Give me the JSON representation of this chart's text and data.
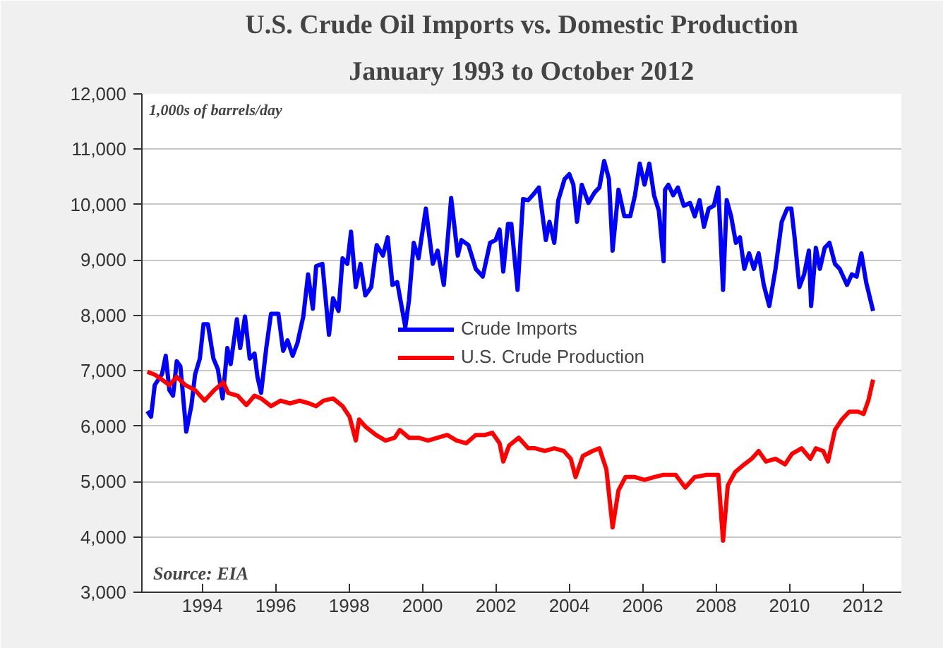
{
  "chart_data": {
    "type": "line",
    "title": "U.S. Crude Oil Imports vs. Domestic Production",
    "subtitle": "January 1993 to October 2012",
    "annotations": [
      "1,000s of barrels/day",
      "Source: EIA"
    ],
    "xlim": [
      1992.85,
      2013.55
    ],
    "xticks": [
      {
        "value": 1994.5,
        "label": "1994"
      },
      {
        "value": 1996.5,
        "label": "1996"
      },
      {
        "value": 1998.5,
        "label": "1998"
      },
      {
        "value": 2000.5,
        "label": "2000"
      },
      {
        "value": 2002.5,
        "label": "2002"
      },
      {
        "value": 2004.5,
        "label": "2004"
      },
      {
        "value": 2006.5,
        "label": "2006"
      },
      {
        "value": 2008.5,
        "label": "2008"
      },
      {
        "value": 2010.5,
        "label": "2010"
      },
      {
        "value": 2012.5,
        "label": "2012"
      }
    ],
    "ylim": [
      3000,
      12000
    ],
    "yticks": [
      {
        "value": 3000,
        "label": "3,000"
      },
      {
        "value": 4000,
        "label": "4,000"
      },
      {
        "value": 5000,
        "label": "5,000"
      },
      {
        "value": 6000,
        "label": "6,000"
      },
      {
        "value": 7000,
        "label": "7,000"
      },
      {
        "value": 8000,
        "label": "8,000"
      },
      {
        "value": 9000,
        "label": "9,000"
      },
      {
        "value": 10000,
        "label": "10,000"
      },
      {
        "value": 11000,
        "label": "11,000"
      },
      {
        "value": 12000,
        "label": "12,000"
      }
    ],
    "grid": "y",
    "legend": "center",
    "line_style": "solid",
    "series": [
      {
        "name": "Crude Imports",
        "color": "#0000ff",
        "x": [
          1993.0,
          1993.1,
          1993.2,
          1993.4,
          1993.5,
          1993.6,
          1993.7,
          1993.8,
          1993.9,
          1994.06,
          1994.2,
          1994.3,
          1994.43,
          1994.53,
          1994.65,
          1994.8,
          1994.92,
          1995.05,
          1995.18,
          1995.27,
          1995.44,
          1995.53,
          1995.66,
          1995.79,
          1995.92,
          1996.0,
          1996.1,
          1996.24,
          1996.37,
          1996.57,
          1996.7,
          1996.82,
          1996.96,
          1997.09,
          1997.25,
          1997.38,
          1997.51,
          1997.6,
          1997.77,
          1997.95,
          1998.06,
          1998.21,
          1998.32,
          1998.45,
          1998.55,
          1998.68,
          1998.81,
          1998.94,
          1999.1,
          1999.25,
          1999.42,
          1999.55,
          1999.68,
          1999.81,
          2000.03,
          2000.13,
          2000.26,
          2000.39,
          2000.59,
          2000.78,
          2000.91,
          2001.08,
          2001.28,
          2001.46,
          2001.56,
          2001.75,
          2001.95,
          2002.14,
          2002.34,
          2002.49,
          2002.6,
          2002.7,
          2002.83,
          2002.92,
          2003.09,
          2003.24,
          2003.38,
          2003.5,
          2003.67,
          2003.86,
          2003.96,
          2004.09,
          2004.2,
          2004.37,
          2004.5,
          2004.61,
          2004.71,
          2004.84,
          2005.02,
          2005.19,
          2005.32,
          2005.45,
          2005.58,
          2005.68,
          2005.84,
          2006.0,
          2006.16,
          2006.29,
          2006.42,
          2006.55,
          2006.68,
          2006.81,
          2006.94,
          2007.07,
          2007.11,
          2007.2,
          2007.33,
          2007.46,
          2007.62,
          2007.79,
          2007.92,
          2008.05,
          2008.17,
          2008.3,
          2008.44,
          2008.56,
          2008.69,
          2008.79,
          2008.91,
          2009.04,
          2009.15,
          2009.27,
          2009.4,
          2009.53,
          2009.66,
          2009.8,
          2009.95,
          2010.12,
          2010.29,
          2010.44,
          2010.55,
          2010.64,
          2010.77,
          2010.9,
          2011.03,
          2011.09,
          2011.22,
          2011.33,
          2011.46,
          2011.59,
          2011.74,
          2011.87,
          2012.07,
          2012.2,
          2012.33,
          2012.46,
          2012.59,
          2012.78
        ],
        "values": [
          6270,
          6170,
          6740,
          6940,
          7270,
          6650,
          6550,
          7170,
          7080,
          5900,
          6370,
          6930,
          7220,
          7840,
          7840,
          7220,
          7030,
          6500,
          7410,
          7120,
          7930,
          7410,
          7980,
          7220,
          7310,
          6890,
          6600,
          7410,
          8030,
          8030,
          7360,
          7550,
          7270,
          7500,
          7980,
          8740,
          8120,
          8890,
          8930,
          7650,
          8310,
          8080,
          9030,
          8930,
          9510,
          8510,
          8930,
          8360,
          8510,
          9270,
          9080,
          9410,
          8550,
          8600,
          7790,
          8270,
          9310,
          9030,
          9930,
          8930,
          9170,
          8550,
          10120,
          9080,
          9360,
          9270,
          8840,
          8700,
          9310,
          9360,
          9550,
          8790,
          9650,
          9650,
          8460,
          10100,
          10080,
          10170,
          10310,
          9360,
          9690,
          9310,
          10080,
          10460,
          10550,
          10360,
          9690,
          10360,
          10030,
          10220,
          10310,
          10790,
          10460,
          9170,
          10270,
          9790,
          9790,
          10170,
          10740,
          10360,
          10740,
          10170,
          9890,
          8980,
          10270,
          10360,
          10170,
          10310,
          9980,
          10030,
          9790,
          10080,
          9600,
          9930,
          9980,
          10310,
          8460,
          10080,
          9790,
          9310,
          9410,
          8840,
          9120,
          8840,
          9120,
          8550,
          8170,
          8840,
          9690,
          9930,
          9930,
          9410,
          8510,
          8740,
          9170,
          8170,
          9220,
          8840,
          9220,
          9310,
          8930,
          8840,
          8550,
          8740,
          8700,
          9120,
          8600,
          8080
        ]
      },
      {
        "name": "U.S. Crude Production",
        "color": "#ff0000",
        "x": [
          1993.0,
          1993.2,
          1993.4,
          1993.6,
          1993.8,
          1994.04,
          1994.3,
          1994.56,
          1994.82,
          1995.07,
          1995.2,
          1995.46,
          1995.7,
          1995.92,
          1996.1,
          1996.37,
          1996.63,
          1996.89,
          1997.15,
          1997.41,
          1997.6,
          1997.8,
          1998.06,
          1998.32,
          1998.51,
          1998.68,
          1998.77,
          1998.96,
          1999.23,
          1999.49,
          1999.74,
          1999.88,
          2000.13,
          2000.39,
          2000.65,
          2000.91,
          2001.17,
          2001.43,
          2001.69,
          2001.95,
          2002.21,
          2002.4,
          2002.6,
          2002.7,
          2002.86,
          2003.12,
          2003.38,
          2003.57,
          2003.83,
          2004.09,
          2004.35,
          2004.54,
          2004.67,
          2004.87,
          2005.13,
          2005.32,
          2005.51,
          2005.68,
          2005.84,
          2006.03,
          2006.29,
          2006.55,
          2006.81,
          2007.07,
          2007.4,
          2007.66,
          2007.92,
          2008.24,
          2008.56,
          2008.69,
          2008.82,
          2009.02,
          2009.27,
          2009.47,
          2009.66,
          2009.86,
          2010.12,
          2010.38,
          2010.57,
          2010.83,
          2011.07,
          2011.22,
          2011.42,
          2011.55,
          2011.74,
          2011.93,
          2012.13,
          2012.37,
          2012.52,
          2012.65,
          2012.78
        ],
        "values": [
          6980,
          6930,
          6840,
          6740,
          6890,
          6740,
          6650,
          6460,
          6650,
          6790,
          6600,
          6550,
          6380,
          6550,
          6500,
          6360,
          6460,
          6410,
          6460,
          6410,
          6360,
          6460,
          6500,
          6360,
          6170,
          5740,
          6120,
          5980,
          5840,
          5740,
          5790,
          5930,
          5790,
          5790,
          5740,
          5790,
          5840,
          5740,
          5690,
          5840,
          5840,
          5880,
          5690,
          5360,
          5650,
          5790,
          5600,
          5600,
          5550,
          5600,
          5550,
          5410,
          5080,
          5460,
          5550,
          5600,
          5220,
          4170,
          4840,
          5080,
          5080,
          5030,
          5080,
          5120,
          5120,
          4890,
          5080,
          5120,
          5120,
          3930,
          4930,
          5170,
          5310,
          5410,
          5550,
          5360,
          5410,
          5310,
          5500,
          5600,
          5410,
          5600,
          5550,
          5360,
          5930,
          6120,
          6260,
          6260,
          6220,
          6460,
          6840
        ]
      }
    ]
  }
}
